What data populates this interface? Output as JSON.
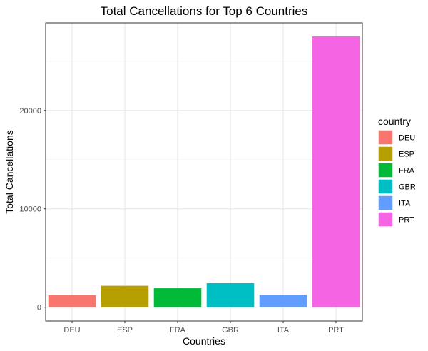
{
  "chart_data": {
    "type": "bar",
    "title": "Total Cancellations for Top 6 Countries",
    "xlabel": "Countries",
    "ylabel": "Total Cancellations",
    "categories": [
      "DEU",
      "ESP",
      "FRA",
      "GBR",
      "ITA",
      "PRT"
    ],
    "values": [
      1220,
      2180,
      1930,
      2450,
      1280,
      27520
    ],
    "colors": [
      "#F8766D",
      "#B79F00",
      "#00BA38",
      "#00BFC4",
      "#619CFF",
      "#F564E3"
    ],
    "ylim": [
      -1400,
      28900
    ],
    "yticks": [
      0,
      10000,
      20000
    ],
    "ytick_labels": [
      "0",
      "10000",
      "20000"
    ],
    "grid": true,
    "legend": {
      "title": "country",
      "position": "right",
      "entries": [
        "DEU",
        "ESP",
        "FRA",
        "GBR",
        "ITA",
        "PRT"
      ]
    }
  }
}
